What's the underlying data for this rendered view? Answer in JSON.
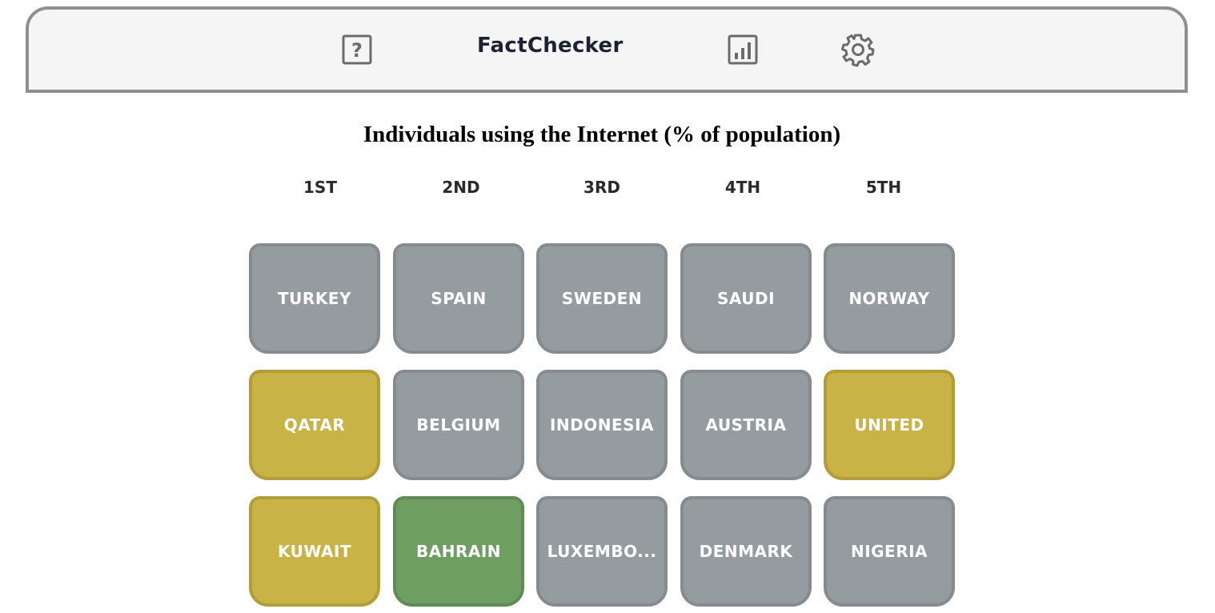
{
  "header": {
    "title": "FactChecker",
    "help_icon": "question-mark-square-icon",
    "stats_icon": "bar-chart-icon",
    "settings_icon": "gear-icon"
  },
  "question": "Individuals using the Internet (% of population)",
  "ranks": [
    "1ST",
    "2ND",
    "3RD",
    "4TH",
    "5TH"
  ],
  "colors": {
    "gray": "#959c9f",
    "yellow": "#c9b346",
    "green": "#6f9e63"
  },
  "rows": [
    [
      {
        "label": "TURKEY",
        "status": "gray"
      },
      {
        "label": "SPAIN",
        "status": "gray"
      },
      {
        "label": "SWEDEN",
        "status": "gray"
      },
      {
        "label": "SAUDI",
        "status": "gray"
      },
      {
        "label": "NORWAY",
        "status": "gray"
      }
    ],
    [
      {
        "label": "QATAR",
        "status": "yellow"
      },
      {
        "label": "BELGIUM",
        "status": "gray"
      },
      {
        "label": "INDONESIA",
        "status": "gray"
      },
      {
        "label": "AUSTRIA",
        "status": "gray"
      },
      {
        "label": "UNITED",
        "status": "yellow"
      }
    ],
    [
      {
        "label": "KUWAIT",
        "status": "yellow"
      },
      {
        "label": "BAHRAIN",
        "status": "green"
      },
      {
        "label": "LUXEMBO...",
        "status": "gray"
      },
      {
        "label": "DENMARK",
        "status": "gray"
      },
      {
        "label": "NIGERIA",
        "status": "gray"
      }
    ]
  ]
}
